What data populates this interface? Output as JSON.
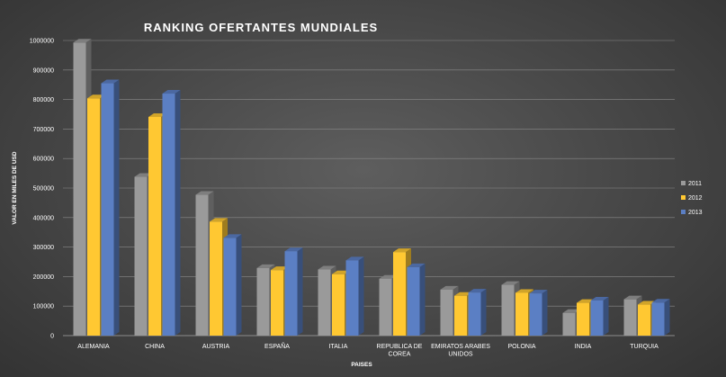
{
  "chart_data": {
    "type": "bar",
    "title": "RANKING OFERTANTES MUNDIALES",
    "xlabel": "PAISES",
    "ylabel": "VALOR EN MILES DE USD",
    "ylim": [
      0,
      1000000
    ],
    "yticks": [
      "0",
      "100000",
      "200000",
      "300000",
      "400000",
      "500000",
      "600000",
      "700000",
      "800000",
      "900000",
      "1000000"
    ],
    "categories": [
      [
        "ALEMANIA"
      ],
      [
        "CHINA"
      ],
      [
        "AUSTRIA"
      ],
      [
        "ESPAÑA"
      ],
      [
        "ITALIA"
      ],
      [
        "REPUBLICA DE",
        "COREA"
      ],
      [
        "EMIRATOS ARABES",
        "UNIDOS"
      ],
      [
        "POLONIA"
      ],
      [
        "INDIA"
      ],
      [
        "TURQUIA"
      ]
    ],
    "series": [
      {
        "name": "2011",
        "color": "#9a9a9a",
        "values": [
          993000,
          538000,
          477000,
          229000,
          224000,
          193000,
          156000,
          172000,
          77000,
          123000
        ]
      },
      {
        "name": "2012",
        "color": "#ffc832",
        "values": [
          804000,
          741000,
          386000,
          222000,
          208000,
          283000,
          135000,
          145000,
          111000,
          105000
        ]
      },
      {
        "name": "2013",
        "color": "#5b7fc4",
        "values": [
          855000,
          820000,
          331000,
          286000,
          255000,
          232000,
          146000,
          143000,
          119000,
          112000
        ]
      }
    ],
    "grid": true,
    "legend": "right"
  }
}
